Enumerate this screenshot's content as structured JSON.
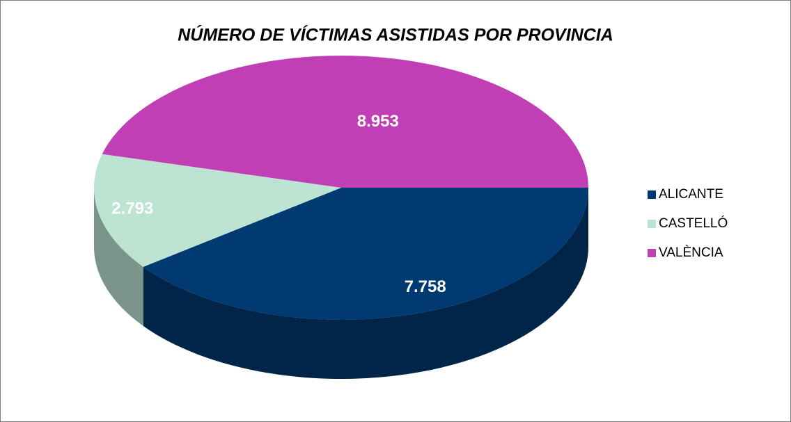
{
  "chart_data": {
    "type": "pie3d",
    "title": "NÚMERO DE VÍCTIMAS ASISTIDAS POR PROVINCIA",
    "categories": [
      "ALICANTE",
      "CASTELLÓ",
      "VALÈNCIA"
    ],
    "values": [
      7758,
      2793,
      8953
    ],
    "value_labels": [
      "7.758",
      "2.793",
      "8.953"
    ],
    "colors": [
      "#003a70",
      "#bde3d3",
      "#c13fb4"
    ],
    "legend": "right"
  }
}
